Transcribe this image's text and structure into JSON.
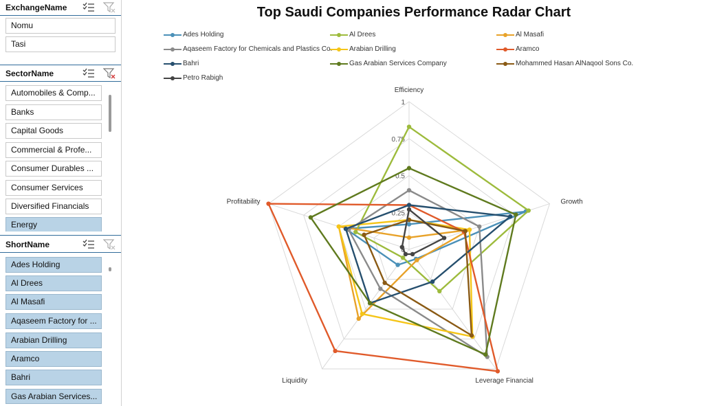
{
  "slicers": {
    "exchange": {
      "title": "ExchangeName",
      "items": [
        {
          "label": "Nomu",
          "selected": true
        },
        {
          "label": "Tasi",
          "selected": true
        }
      ]
    },
    "sector": {
      "title": "SectorName",
      "items": [
        {
          "label": "Automobiles & Comp...",
          "selected": false
        },
        {
          "label": "Banks",
          "selected": false
        },
        {
          "label": "Capital Goods",
          "selected": false
        },
        {
          "label": "Commercial & Profe...",
          "selected": false
        },
        {
          "label": "Consumer Durables ...",
          "selected": false
        },
        {
          "label": "Consumer Services",
          "selected": false
        },
        {
          "label": "Diversified Financials",
          "selected": false
        },
        {
          "label": "Energy",
          "selected": true
        }
      ]
    },
    "short": {
      "title": "ShortName",
      "items": [
        {
          "label": "Ades Holding",
          "selected": true
        },
        {
          "label": "Al Drees",
          "selected": true
        },
        {
          "label": "Al Masafi",
          "selected": true
        },
        {
          "label": "Aqaseem Factory for ...",
          "selected": true
        },
        {
          "label": "Arabian Drilling",
          "selected": true
        },
        {
          "label": "Aramco",
          "selected": true
        },
        {
          "label": "Bahri",
          "selected": true
        },
        {
          "label": "Gas Arabian Services...",
          "selected": true
        }
      ]
    }
  },
  "icons": {
    "multi_select": "multi-select-icon",
    "clear_filter": "clear-filter-icon"
  },
  "chart_data": {
    "type": "radar",
    "title": "Top Saudi Companies Performance Radar Chart",
    "axes": [
      "Efficiency",
      "Growth",
      "Leverage Financial",
      "Liquidity",
      "Profitability"
    ],
    "range": [
      0,
      1
    ],
    "ticks": [
      "0",
      "0.25",
      "0.5",
      "0.75",
      "1"
    ],
    "legend_position": "top",
    "series": [
      {
        "name": "Ades Holding",
        "color": "#4a90b8",
        "values": [
          0.17,
          0.83,
          0.08,
          0.13,
          0.45
        ]
      },
      {
        "name": "Al Drees",
        "color": "#9dbb3c",
        "values": [
          0.83,
          0.85,
          0.35,
          0.07,
          0.38
        ]
      },
      {
        "name": "Al Masafi",
        "color": "#e8a229",
        "values": [
          0.08,
          0.43,
          0.09,
          0.58,
          0.5
        ]
      },
      {
        "name": "Aqaseem Factory for Chemicals and Plastics Co.",
        "color": "#8a8a8a",
        "values": [
          0.4,
          0.5,
          0.9,
          0.33,
          0.43
        ]
      },
      {
        "name": "Arabian Drilling",
        "color": "#f5c518",
        "values": [
          0.2,
          0.43,
          0.73,
          0.54,
          0.5
        ]
      },
      {
        "name": "Aramco",
        "color": "#e05a2a",
        "values": [
          0.3,
          0.39,
          1.02,
          0.85,
          1.0
        ]
      },
      {
        "name": "Bahri",
        "color": "#264f6e",
        "values": [
          0.3,
          0.72,
          0.27,
          0.45,
          0.45
        ]
      },
      {
        "name": "Gas Arabian Services Company",
        "color": "#5f7a1e",
        "values": [
          0.55,
          0.76,
          0.88,
          0.45,
          0.7
        ]
      },
      {
        "name": "Mohammed Hasan AlNaqool Sons Co.",
        "color": "#8a5a14",
        "values": [
          0.2,
          0.4,
          0.72,
          0.28,
          0.32
        ]
      },
      {
        "name": "Petro Rabigh",
        "color": "#444444",
        "values": [
          0.27,
          0.25,
          0.04,
          0.04,
          0.05
        ]
      }
    ]
  }
}
